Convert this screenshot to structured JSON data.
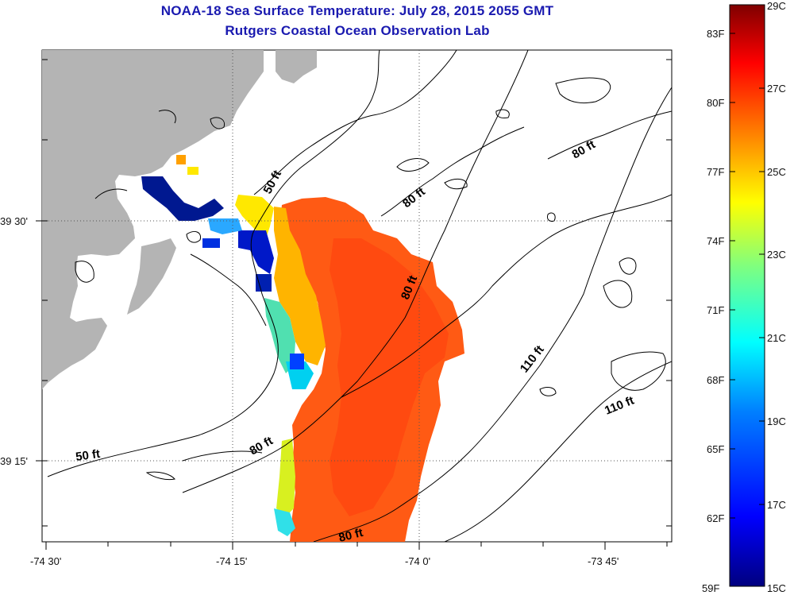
{
  "title": {
    "line1": "NOAA-18 Sea Surface Temperature:  July 28, 2015 2055 GMT",
    "line2": "Rutgers Coastal Ocean Observation Lab"
  },
  "axes": {
    "x_ticks": [
      "-74 30'",
      "-74 15'",
      "-74 0'",
      "-73 45'"
    ],
    "y_ticks": [
      "39 30'",
      "39 15'"
    ]
  },
  "depth_contours": [
    "50 ft",
    "80 ft",
    "80 ft",
    "80 ft",
    "110 ft",
    "110 ft",
    "50 ft",
    "80 ft",
    "80 ft"
  ],
  "colorbar": {
    "fahrenheit": [
      "83F",
      "80F",
      "77F",
      "74F",
      "71F",
      "68F",
      "65F",
      "62F",
      "59F"
    ],
    "celsius": [
      "29C",
      "27C",
      "25C",
      "23C",
      "21C",
      "19C",
      "17C",
      "15C"
    ],
    "range_f": [
      59,
      84
    ],
    "colors": [
      "#00007f",
      "#0000ff",
      "#007fff",
      "#00ffff",
      "#7fff7f",
      "#ffff00",
      "#ff7f00",
      "#ff0000",
      "#7f0000"
    ]
  },
  "colors": {
    "land": "#b4b4b4",
    "title_blue": "#1a1ab0",
    "sst_main": "#ff5a14"
  }
}
